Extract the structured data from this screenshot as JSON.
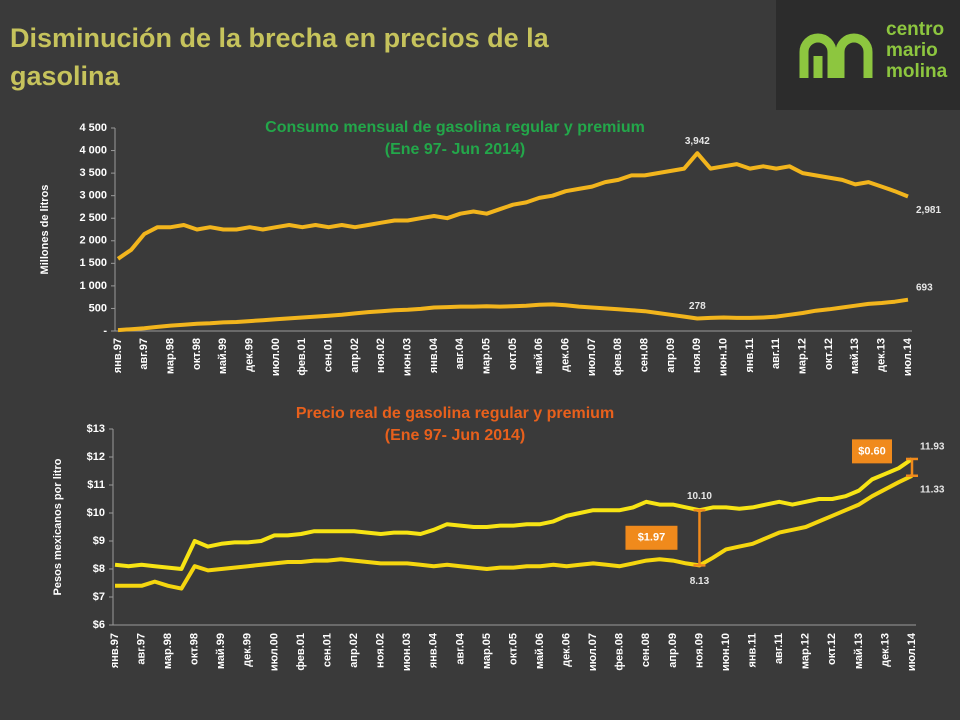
{
  "title": "Disminución de la brecha en precios de la gasolina",
  "logo": [
    "centro",
    "mario",
    "molina"
  ],
  "chart_data": [
    {
      "type": "line",
      "title": "Consumo mensual de gasolina regular y premium",
      "subtitle": "(Ene 97- Jun 2014)",
      "title_color": "#23a74a",
      "ylabel": "Millones de litros",
      "categories": [
        "янв.97",
        null,
        "авг.97",
        null,
        "мар.98",
        null,
        "окт.98",
        null,
        "май.99",
        null,
        "дек.99",
        null,
        "июл.00",
        null,
        "фев.01",
        null,
        "сен.01",
        null,
        "апр.02",
        null,
        "ноя.02",
        null,
        "июн.03",
        null,
        "янв.04",
        null,
        "авг.04",
        null,
        "мар.05",
        null,
        "окт.05",
        null,
        "май.06",
        null,
        "дек.06",
        null,
        "июл.07",
        null,
        "фев.08",
        null,
        "сен.08",
        null,
        "апр.09",
        null,
        "ноя.09",
        null,
        "июн.10",
        null,
        "янв.11",
        null,
        "авг.11",
        null,
        "мар.12",
        null,
        "окт.12",
        null,
        "май.13",
        null,
        "дек.13",
        null,
        "июл.14"
      ],
      "series": [
        {
          "color": "#f2b51d",
          "values": [
            1600,
            1800,
            2150,
            2300,
            2300,
            2350,
            2250,
            2300,
            2250,
            2250,
            2300,
            2250,
            2300,
            2350,
            2300,
            2350,
            2300,
            2350,
            2300,
            2350,
            2400,
            2450,
            2450,
            2500,
            2550,
            2500,
            2600,
            2650,
            2600,
            2700,
            2800,
            2850,
            2950,
            3000,
            3100,
            3150,
            3200,
            3300,
            3350,
            3450,
            3450,
            3500,
            3550,
            3600,
            3942,
            3600,
            3650,
            3700,
            3600,
            3650,
            3600,
            3650,
            3500,
            3450,
            3400,
            3350,
            3250,
            3300,
            3200,
            3100,
            2981
          ],
          "value_labels": [
            null,
            null,
            null,
            null,
            null,
            null,
            null,
            null,
            null,
            null,
            null,
            null,
            null,
            null,
            null,
            null,
            null,
            null,
            null,
            null,
            null,
            null,
            null,
            null,
            null,
            null,
            null,
            null,
            null,
            null,
            null,
            null,
            null,
            null,
            null,
            null,
            null,
            null,
            null,
            null,
            null,
            null,
            null,
            null,
            "3,942",
            null,
            null,
            null,
            null,
            null,
            null,
            null,
            null,
            null,
            null,
            null,
            null,
            null,
            null,
            null,
            "2,981"
          ]
        },
        {
          "color": "#f2b51d",
          "values": [
            20,
            40,
            60,
            90,
            120,
            140,
            160,
            170,
            190,
            200,
            220,
            240,
            260,
            280,
            300,
            320,
            340,
            360,
            390,
            420,
            440,
            460,
            470,
            490,
            520,
            530,
            540,
            540,
            550,
            540,
            550,
            560,
            580,
            590,
            570,
            540,
            520,
            500,
            480,
            460,
            440,
            400,
            360,
            320,
            278,
            290,
            300,
            290,
            290,
            300,
            320,
            360,
            400,
            450,
            480,
            520,
            560,
            600,
            620,
            650,
            693
          ],
          "value_labels": [
            null,
            null,
            null,
            null,
            null,
            null,
            null,
            null,
            null,
            null,
            null,
            null,
            null,
            null,
            null,
            null,
            null,
            null,
            null,
            null,
            null,
            null,
            null,
            null,
            null,
            null,
            null,
            null,
            null,
            null,
            null,
            null,
            null,
            null,
            null,
            null,
            null,
            null,
            null,
            null,
            null,
            null,
            null,
            null,
            "278",
            null,
            null,
            null,
            null,
            null,
            null,
            null,
            null,
            null,
            null,
            null,
            null,
            null,
            null,
            null,
            "693"
          ]
        }
      ],
      "ylim": [
        0,
        4500
      ],
      "yticks": [
        {
          "value": 0,
          "label": "-"
        },
        500,
        {
          "value": 1000,
          "label": "1 000"
        },
        {
          "value": 1500,
          "label": "1 500"
        },
        {
          "value": 2000,
          "label": "2 000"
        },
        {
          "value": 2500,
          "label": "2 500"
        },
        {
          "value": 3000,
          "label": "3 000"
        },
        {
          "value": 3500,
          "label": "3 500"
        },
        {
          "value": 4000,
          "label": "4 000"
        },
        {
          "value": 4500,
          "label": "4 500"
        }
      ]
    },
    {
      "type": "line",
      "title": "Precio real de gasolina regular y premium",
      "subtitle": "(Ene 97- Jun 2014)",
      "title_color": "#e8601c",
      "ylabel": "Pesos mexicanos por litro",
      "categories": [
        "янв.97",
        null,
        "авг.97",
        null,
        "мар.98",
        null,
        "окт.98",
        null,
        "май.99",
        null,
        "дек.99",
        null,
        "июл.00",
        null,
        "фев.01",
        null,
        "сен.01",
        null,
        "апр.02",
        null,
        "ноя.02",
        null,
        "июн.03",
        null,
        "янв.04",
        null,
        "авг.04",
        null,
        "мар.05",
        null,
        "окт.05",
        null,
        "май.06",
        null,
        "дек.06",
        null,
        "июл.07",
        null,
        "фев.08",
        null,
        "сен.08",
        null,
        "апр.09",
        null,
        "ноя.09",
        null,
        "июн.10",
        null,
        "янв.11",
        null,
        "авг.11",
        null,
        "мар.12",
        null,
        "окт.12",
        null,
        "май.13",
        null,
        "дек.13",
        null,
        "июл.14"
      ],
      "series": [
        {
          "color": "#f7e414",
          "values": [
            8.15,
            8.1,
            8.15,
            8.1,
            8.05,
            8.0,
            9.0,
            8.8,
            8.9,
            8.95,
            8.95,
            9.0,
            9.2,
            9.2,
            9.25,
            9.35,
            9.35,
            9.35,
            9.35,
            9.3,
            9.25,
            9.3,
            9.3,
            9.25,
            9.4,
            9.6,
            9.55,
            9.5,
            9.5,
            9.55,
            9.55,
            9.6,
            9.6,
            9.7,
            9.9,
            10.0,
            10.1,
            10.1,
            10.1,
            10.2,
            10.4,
            10.3,
            10.3,
            10.2,
            10.1,
            10.2,
            10.2,
            10.15,
            10.2,
            10.3,
            10.4,
            10.3,
            10.4,
            10.5,
            10.5,
            10.6,
            10.8,
            11.2,
            11.4,
            11.6,
            11.93
          ],
          "value_labels": [
            null,
            null,
            null,
            null,
            null,
            null,
            null,
            null,
            null,
            null,
            null,
            null,
            null,
            null,
            null,
            null,
            null,
            null,
            null,
            null,
            null,
            null,
            null,
            null,
            null,
            null,
            null,
            null,
            null,
            null,
            null,
            null,
            null,
            null,
            null,
            null,
            null,
            null,
            null,
            null,
            null,
            null,
            null,
            null,
            "10.10",
            null,
            null,
            null,
            null,
            null,
            null,
            null,
            null,
            null,
            null,
            null,
            null,
            null,
            null,
            null,
            "11.93"
          ]
        },
        {
          "color": "#f5d60f",
          "values": [
            7.4,
            7.4,
            7.4,
            7.55,
            7.4,
            7.3,
            8.1,
            7.95,
            8.0,
            8.05,
            8.1,
            8.15,
            8.2,
            8.25,
            8.25,
            8.3,
            8.3,
            8.35,
            8.3,
            8.25,
            8.2,
            8.2,
            8.2,
            8.15,
            8.1,
            8.15,
            8.1,
            8.05,
            8.0,
            8.05,
            8.05,
            8.1,
            8.1,
            8.15,
            8.1,
            8.15,
            8.2,
            8.15,
            8.1,
            8.2,
            8.3,
            8.35,
            8.3,
            8.2,
            8.13,
            8.4,
            8.7,
            8.8,
            8.9,
            9.1,
            9.3,
            9.4,
            9.5,
            9.7,
            9.9,
            10.1,
            10.3,
            10.6,
            10.85,
            11.1,
            11.33
          ],
          "value_labels": [
            null,
            null,
            null,
            null,
            null,
            null,
            null,
            null,
            null,
            null,
            null,
            null,
            null,
            null,
            null,
            null,
            null,
            null,
            null,
            null,
            null,
            null,
            null,
            null,
            null,
            null,
            null,
            null,
            null,
            null,
            null,
            null,
            null,
            null,
            null,
            null,
            null,
            null,
            null,
            null,
            null,
            null,
            null,
            null,
            "8.13",
            null,
            null,
            null,
            null,
            null,
            null,
            null,
            null,
            null,
            null,
            null,
            null,
            null,
            null,
            null,
            "11.33"
          ]
        }
      ],
      "annotations": [
        {
          "label": "$1.97",
          "value": 1.97
        },
        {
          "label": "$0.60",
          "value": 0.6
        }
      ],
      "ylim": [
        6,
        13
      ],
      "yticks": [
        {
          "value": 6,
          "label": "$6"
        },
        {
          "value": 7,
          "label": "$7"
        },
        {
          "value": 8,
          "label": "$8"
        },
        {
          "value": 9,
          "label": "$9"
        },
        {
          "value": 10,
          "label": "$10"
        },
        {
          "value": 11,
          "label": "$11"
        },
        {
          "value": 12,
          "label": "$12"
        },
        {
          "value": 13,
          "label": "$13"
        }
      ]
    }
  ]
}
